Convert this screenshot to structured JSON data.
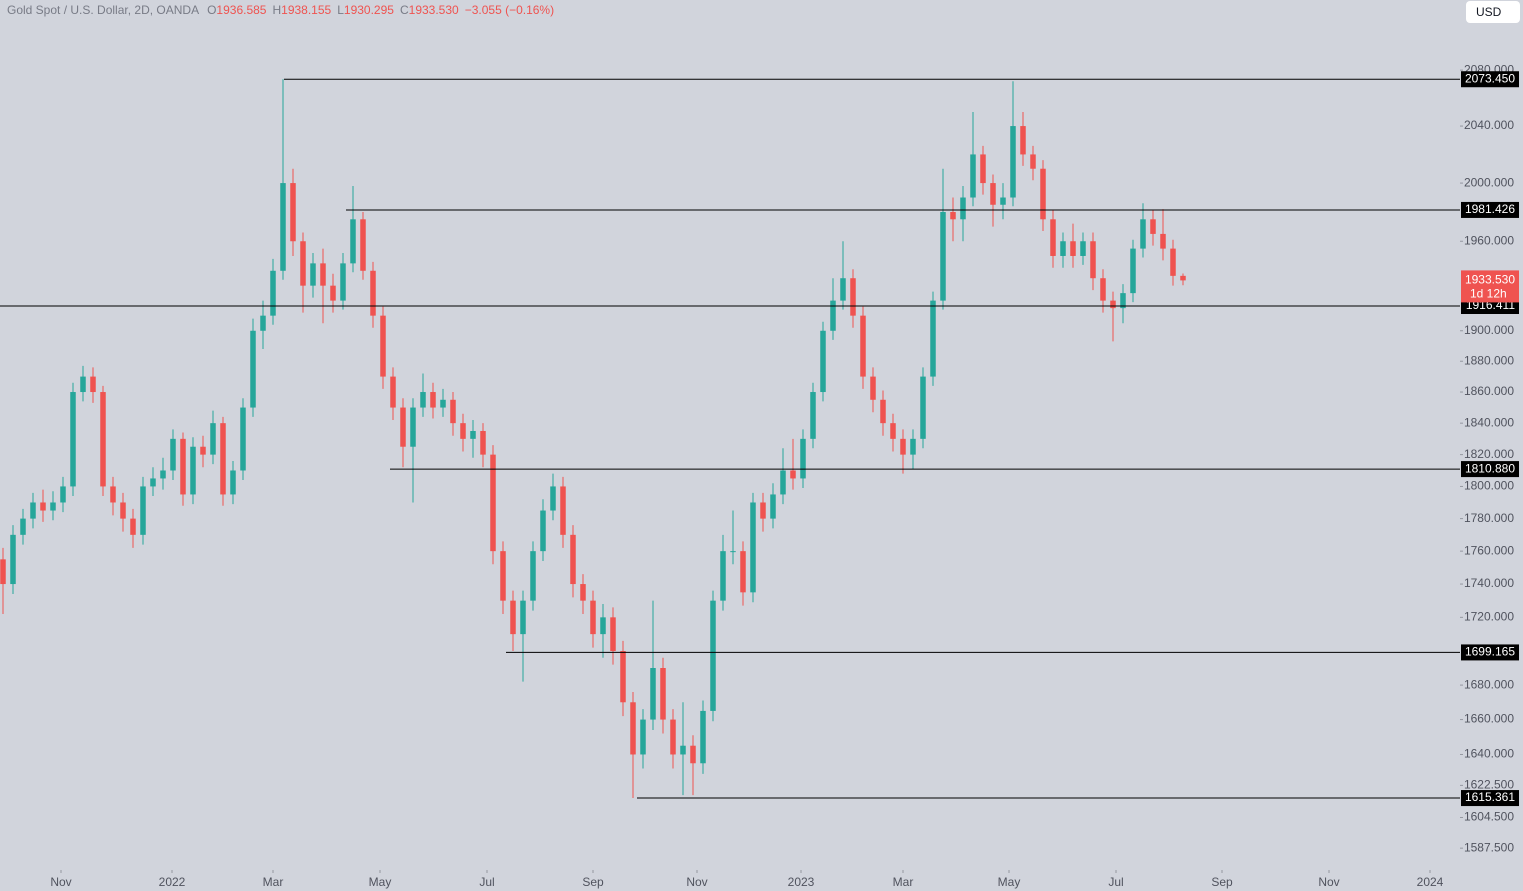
{
  "chart_data": {
    "type": "candlestick",
    "symbol": "Gold Spot / U.S. Dollar, 2D, OANDA",
    "ohlc_labels": [
      {
        "label": "O",
        "value": "1936.585"
      },
      {
        "label": "H",
        "value": "1938.155"
      },
      {
        "label": "L",
        "value": "1930.295"
      },
      {
        "label": "C",
        "value": "1933.530"
      }
    ],
    "change": "−3.055 (−0.16%)",
    "currency": "USD",
    "up_color": "#26a69a",
    "down_color": "#ef5350",
    "log_scale": true,
    "grid": false,
    "open": [
      1755,
      1740,
      1770,
      1780,
      1790,
      1785,
      1790,
      1800,
      1860,
      1870,
      1860,
      1800,
      1790,
      1780,
      1770,
      1800,
      1805,
      1810,
      1830,
      1795,
      1825,
      1820,
      1840,
      1795,
      1810,
      1850,
      1900,
      1910,
      1940,
      2000,
      1960,
      1930,
      1945,
      1930,
      1920,
      1945,
      1975,
      1940,
      1910,
      1870,
      1850,
      1825,
      1850,
      1860,
      1850,
      1855,
      1840,
      1830,
      1835,
      1820,
      1760,
      1730,
      1710,
      1730,
      1760,
      1785,
      1800,
      1770,
      1740,
      1730,
      1710,
      1720,
      1700,
      1670,
      1640,
      1660,
      1690,
      1660,
      1640,
      1645,
      1635,
      1665,
      1730,
      1760,
      1760,
      1735,
      1790,
      1780,
      1795,
      1810,
      1805,
      1830,
      1860,
      1900,
      1920,
      1935,
      1910,
      1870,
      1855,
      1840,
      1830,
      1820,
      1830,
      1870,
      1920,
      1980,
      1975,
      1990,
      2020,
      2000,
      1985,
      1990,
      2040,
      2020,
      2010,
      1975,
      1950,
      1960,
      1950,
      1960,
      1935,
      1920,
      1915,
      1925,
      1955,
      1975,
      1965,
      1955,
      1936.585
    ],
    "high": [
      1762,
      1776,
      1786,
      1796,
      1798,
      1797,
      1806,
      1866,
      1877,
      1876,
      1864,
      1806,
      1796,
      1786,
      1806,
      1812,
      1818,
      1836,
      1834,
      1831,
      1832,
      1848,
      1844,
      1816,
      1856,
      1908,
      1920,
      1948,
      2073.45,
      2010,
      1966,
      1952,
      1955,
      1938,
      1952,
      1998,
      1980,
      1946,
      1916,
      1876,
      1856,
      1856,
      1872,
      1866,
      1862,
      1860,
      1846,
      1842,
      1840,
      1826,
      1766,
      1736,
      1736,
      1766,
      1792,
      1808,
      1806,
      1776,
      1746,
      1736,
      1728,
      1726,
      1706,
      1676,
      1666,
      1730,
      1696,
      1666,
      1670,
      1651,
      1671,
      1736,
      1770,
      1785,
      1766,
      1796,
      1796,
      1802,
      1824,
      1830,
      1836,
      1866,
      1906,
      1935,
      1960,
      1941,
      1916,
      1876,
      1861,
      1846,
      1836,
      1836,
      1876,
      1926,
      2010,
      1990,
      1998,
      2050,
      2026,
      2006,
      2000,
      2072,
      2050,
      2026,
      2016,
      1981,
      1966,
      1972,
      1966,
      1966,
      1941,
      1926,
      1931,
      1961,
      1986,
      1981,
      1982,
      1961,
      1938.155
    ],
    "low": [
      1722,
      1734,
      1764,
      1774,
      1778,
      1779,
      1784,
      1794,
      1854,
      1853,
      1794,
      1782,
      1772,
      1762,
      1764,
      1794,
      1798,
      1804,
      1788,
      1789,
      1812,
      1814,
      1788,
      1789,
      1804,
      1844,
      1888,
      1904,
      1934,
      1950,
      1912,
      1922,
      1905,
      1912,
      1914,
      1939,
      1934,
      1902,
      1862,
      1842,
      1812,
      1790,
      1844,
      1843,
      1844,
      1832,
      1822,
      1818,
      1812,
      1752,
      1722,
      1700,
      1682,
      1724,
      1754,
      1779,
      1762,
      1732,
      1722,
      1702,
      1696,
      1692,
      1662,
      1615.361,
      1632,
      1654,
      1652,
      1632,
      1617,
      1617,
      1629,
      1659,
      1724,
      1752,
      1727,
      1729,
      1772,
      1774,
      1789,
      1798,
      1799,
      1824,
      1854,
      1894,
      1914,
      1902,
      1862,
      1847,
      1832,
      1822,
      1808,
      1810.88,
      1824,
      1864,
      1914,
      1960,
      1960,
      1984,
      1992,
      1970,
      1975,
      1984,
      2012,
      2002,
      1967,
      1942,
      1942,
      1942,
      1944,
      1927,
      1912,
      1893,
      1905,
      1919,
      1949,
      1957,
      1947,
      1930,
      1930.295
    ],
    "close": [
      1740,
      1770,
      1780,
      1790,
      1785,
      1790,
      1800,
      1860,
      1870,
      1860,
      1800,
      1790,
      1780,
      1770,
      1800,
      1805,
      1810,
      1830,
      1795,
      1825,
      1820,
      1840,
      1795,
      1810,
      1850,
      1900,
      1910,
      1940,
      2000,
      1960,
      1930,
      1945,
      1930,
      1920,
      1945,
      1975,
      1940,
      1910,
      1870,
      1850,
      1825,
      1850,
      1860,
      1850,
      1855,
      1840,
      1830,
      1835,
      1820,
      1760,
      1730,
      1710,
      1730,
      1760,
      1785,
      1800,
      1770,
      1740,
      1730,
      1710,
      1720,
      1700,
      1670,
      1640,
      1660,
      1690,
      1660,
      1640,
      1645,
      1635,
      1665,
      1730,
      1760,
      1760,
      1735,
      1790,
      1780,
      1795,
      1810,
      1805,
      1830,
      1860,
      1900,
      1920,
      1935,
      1910,
      1870,
      1855,
      1840,
      1830,
      1820,
      1830,
      1870,
      1920,
      1980,
      1975,
      1990,
      2020,
      2000,
      1985,
      1990,
      2040,
      2020,
      2010,
      1975,
      1950,
      1960,
      1950,
      1960,
      1935,
      1920,
      1915,
      1925,
      1955,
      1975,
      1965,
      1955,
      1936.585,
      1933.53
    ],
    "xlim": [
      -0.3,
      145.7
    ],
    "xticks": [
      {
        "value": 5.8,
        "label": "Nov"
      },
      {
        "value": 16.9,
        "label": "2022"
      },
      {
        "value": 27,
        "label": "Mar"
      },
      {
        "value": 37.7,
        "label": "May"
      },
      {
        "value": 48.4,
        "label": "Jul"
      },
      {
        "value": 59,
        "label": "Sep"
      },
      {
        "value": 69.4,
        "label": "Nov"
      },
      {
        "value": 79.8,
        "label": "2023"
      },
      {
        "value": 90,
        "label": "Mar"
      },
      {
        "value": 100.6,
        "label": "May"
      },
      {
        "value": 111.3,
        "label": "Jul"
      },
      {
        "value": 121.9,
        "label": "Sep"
      },
      {
        "value": 132.6,
        "label": "Nov"
      },
      {
        "value": 142.7,
        "label": "2024"
      }
    ],
    "ylim": [
      1575.5,
      2131.3
    ],
    "yticks": [
      {
        "value": 2080,
        "label": "2080.000"
      },
      {
        "value": 2040,
        "label": "2040.000"
      },
      {
        "value": 2000,
        "label": "2000.000"
      },
      {
        "value": 1960,
        "label": "1960.000"
      },
      {
        "value": 1900,
        "label": "1900.000"
      },
      {
        "value": 1880,
        "label": "1880.000"
      },
      {
        "value": 1860,
        "label": "1860.000"
      },
      {
        "value": 1840,
        "label": "1840.000"
      },
      {
        "value": 1820,
        "label": "1820.000"
      },
      {
        "value": 1800,
        "label": "1800.000"
      },
      {
        "value": 1780,
        "label": "1780.000"
      },
      {
        "value": 1760,
        "label": "1760.000"
      },
      {
        "value": 1740,
        "label": "1740.000"
      },
      {
        "value": 1720,
        "label": "1720.000"
      },
      {
        "value": 1680,
        "label": "1680.000"
      },
      {
        "value": 1660,
        "label": "1660.000"
      },
      {
        "value": 1640,
        "label": "1640.000"
      },
      {
        "value": 1622.5,
        "label": "1622.500"
      },
      {
        "value": 1604.5,
        "label": "1604.500"
      },
      {
        "value": 1587.5,
        "label": "1587.500"
      }
    ],
    "levels": [
      {
        "value": 2073.45,
        "label": "2073.450"
      },
      {
        "value": 1981.426,
        "label": "1981.426"
      },
      {
        "value": 1916.411,
        "label": "1916.411"
      },
      {
        "value": 1810.88,
        "label": "1810.880"
      },
      {
        "value": 1699.165,
        "label": "1699.165"
      },
      {
        "value": 1615.361,
        "label": "1615.361"
      }
    ],
    "last_price": {
      "value": 1933.53,
      "label": "1933.530"
    },
    "countdown": "1d 12h"
  }
}
